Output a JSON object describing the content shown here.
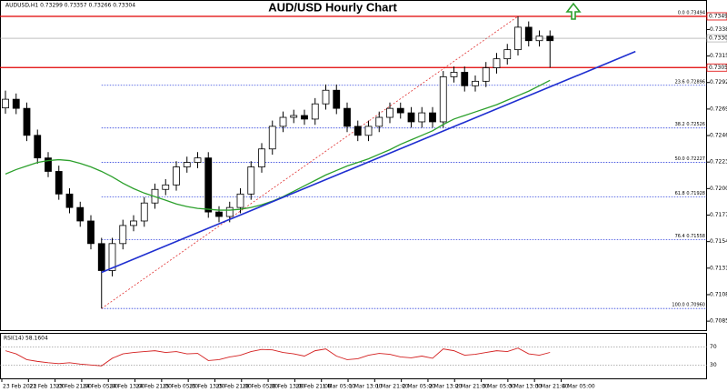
{
  "chart_data": [
    {
      "type": "candlestick",
      "title": "AUD/USD Hourly Chart",
      "header": "AUDUSD,H1  0.73299 0.73357 0.73266 0.73304",
      "up_color": "#ffffff",
      "down_color": "#000000",
      "open": [
        0.727,
        0.72775,
        0.72696,
        0.72462,
        0.72266,
        0.72149,
        0.71953,
        0.71836,
        0.71719,
        0.71523,
        0.71289,
        0.71523,
        0.7168,
        0.71719,
        0.71875,
        0.71993,
        0.72032,
        0.72188,
        0.72227,
        0.72266,
        0.71797,
        0.71758,
        0.71836,
        0.71953,
        0.72188,
        0.72344,
        0.7254,
        0.72618,
        0.72634,
        0.72603,
        0.72735,
        0.72853,
        0.72696,
        0.7254,
        0.72462,
        0.7254,
        0.72618,
        0.72696,
        0.72657,
        0.72579,
        0.72657,
        0.72579,
        0.7297,
        0.73009,
        0.72892,
        0.72931,
        0.73048,
        0.73126,
        0.73205,
        0.734,
        0.73283,
        0.73322
      ],
      "high": [
        0.7285,
        0.72825,
        0.72746,
        0.72512,
        0.72316,
        0.72199,
        0.72003,
        0.71886,
        0.71769,
        0.71573,
        0.71573,
        0.7173,
        0.71769,
        0.71925,
        0.72043,
        0.72082,
        0.72238,
        0.72277,
        0.72316,
        0.72316,
        0.71847,
        0.71886,
        0.72003,
        0.72238,
        0.72394,
        0.7259,
        0.72668,
        0.72684,
        0.72684,
        0.72785,
        0.72903,
        0.72903,
        0.72746,
        0.7259,
        0.7259,
        0.72668,
        0.72746,
        0.72746,
        0.72707,
        0.72707,
        0.72707,
        0.7302,
        0.73059,
        0.73059,
        0.72981,
        0.73098,
        0.73176,
        0.73255,
        0.73494,
        0.7345,
        0.73372,
        0.73372
      ],
      "low": [
        0.7265,
        0.72646,
        0.72412,
        0.72216,
        0.72099,
        0.71903,
        0.71786,
        0.71669,
        0.71473,
        0.7096,
        0.71239,
        0.71473,
        0.7163,
        0.71669,
        0.71825,
        0.71943,
        0.71982,
        0.72138,
        0.72177,
        0.71747,
        0.71708,
        0.71708,
        0.71786,
        0.71903,
        0.72138,
        0.72294,
        0.7249,
        0.72568,
        0.72553,
        0.72553,
        0.72685,
        0.72646,
        0.7249,
        0.72412,
        0.72412,
        0.7249,
        0.72568,
        0.72607,
        0.72529,
        0.72529,
        0.72529,
        0.72529,
        0.7292,
        0.72842,
        0.72842,
        0.72881,
        0.72998,
        0.73076,
        0.73155,
        0.73233,
        0.73233,
        0.7305
      ],
      "close": [
        0.72775,
        0.72696,
        0.72462,
        0.72266,
        0.72149,
        0.71953,
        0.71836,
        0.71719,
        0.71523,
        0.71289,
        0.71523,
        0.7168,
        0.71719,
        0.71875,
        0.71993,
        0.72032,
        0.72188,
        0.72227,
        0.72266,
        0.71797,
        0.71758,
        0.71836,
        0.71953,
        0.72188,
        0.72344,
        0.7254,
        0.72618,
        0.72634,
        0.72603,
        0.72735,
        0.72853,
        0.72696,
        0.7254,
        0.72462,
        0.7254,
        0.72618,
        0.72696,
        0.72657,
        0.72579,
        0.72657,
        0.72579,
        0.7297,
        0.73009,
        0.72892,
        0.72931,
        0.73048,
        0.73126,
        0.73205,
        0.734,
        0.73283,
        0.73322,
        0.73283
      ],
      "moving_average": {
        "color": "#2ca02c",
        "values": [
          0.72126,
          0.72165,
          0.72196,
          0.72227,
          0.72243,
          0.72251,
          0.72243,
          0.72219,
          0.72188,
          0.72149,
          0.72102,
          0.72047,
          0.72,
          0.71961,
          0.7193,
          0.71899,
          0.71867,
          0.71844,
          0.71828,
          0.71821,
          0.71813,
          0.71813,
          0.71821,
          0.71836,
          0.7186,
          0.71891,
          0.7193,
          0.71977,
          0.72024,
          0.72071,
          0.72118,
          0.72157,
          0.72196,
          0.72227,
          0.72258,
          0.72298,
          0.72337,
          0.72384,
          0.72423,
          0.72462,
          0.72501,
          0.72556,
          0.72603,
          0.72634,
          0.72665,
          0.72696,
          0.72728,
          0.72767,
          0.72806,
          0.72845,
          0.72892,
          0.72939
        ]
      },
      "trendline": {
        "color": "#1f2fd0",
        "x": [
          9,
          59
        ],
        "values": [
          0.71273,
          0.73189
        ]
      },
      "fibonacci": {
        "color": "#3344dd",
        "from_index": 9,
        "to_index": 48,
        "low": 0.7096,
        "high": 0.73494,
        "levels": [
          {
            "value": 0.73494,
            "label": "0.0 0.73494"
          },
          {
            "value": 0.72896,
            "label": "23.6 0.72896"
          },
          {
            "value": 0.72526,
            "label": "38.2 0.72526"
          },
          {
            "value": 0.72227,
            "label": "50.0 0.72227"
          },
          {
            "value": 0.71928,
            "label": "61.8 0.71928"
          },
          {
            "value": 0.71558,
            "label": "76.4 0.71558"
          },
          {
            "value": 0.7096,
            "label": "100.0 0.70960"
          }
        ]
      },
      "hlines": [
        {
          "value": 0.73494,
          "label": "0.73494"
        },
        {
          "value": 0.7305,
          "label": "0.73050"
        }
      ],
      "current_price": {
        "value": 0.73304,
        "label": "0.73304"
      },
      "ylim": [
        0.7078,
        0.73557
      ],
      "yticks": [
        {
          "value": 0.7085,
          "label": "0.70850"
        },
        {
          "value": 0.7108,
          "label": "0.71080"
        },
        {
          "value": 0.7131,
          "label": "0.71310"
        },
        {
          "value": 0.7154,
          "label": "0.71540"
        },
        {
          "value": 0.7177,
          "label": "0.71770"
        },
        {
          "value": 0.72,
          "label": "0.72000"
        },
        {
          "value": 0.7223,
          "label": "0.72230"
        },
        {
          "value": 0.7246,
          "label": "0.72460"
        },
        {
          "value": 0.7269,
          "label": "0.72690"
        },
        {
          "value": 0.7292,
          "label": "0.72920"
        },
        {
          "value": 0.7315,
          "label": "0.73150"
        },
        {
          "value": 0.7338,
          "label": "0.73380"
        }
      ],
      "x_labels": [
        "23 Feb 2022",
        "23 Feb 13:00",
        "23 Feb 21:00",
        "24 Feb 05:00",
        "24 Feb 13:00",
        "24 Feb 21:00",
        "25 Feb 05:00",
        "25 Feb 13:00",
        "25 Feb 21:00",
        "28 Feb 05:00",
        "28 Feb 13:00",
        "28 Feb 21:00",
        "1 Mar 05:00",
        "1 Mar 13:00",
        "1 Mar 21:00",
        "2 Mar 05:00",
        "2 Mar 13:00",
        "2 Mar 21:00",
        "3 Mar 05:00",
        "3 Mar 13:00",
        "3 Mar 21:00",
        "4 Mar 05:00"
      ]
    },
    {
      "type": "line",
      "title": "RSI(14) 58.1604",
      "color": "#d42020",
      "values": [
        62,
        55,
        42,
        38,
        35,
        33,
        35,
        32,
        30,
        28,
        45,
        55,
        58,
        60,
        62,
        58,
        60,
        55,
        56,
        40,
        42,
        48,
        52,
        60,
        65,
        64,
        58,
        55,
        50,
        62,
        66,
        50,
        42,
        44,
        52,
        56,
        54,
        48,
        46,
        50,
        45,
        66,
        62,
        52,
        54,
        58,
        62,
        60,
        68,
        55,
        52,
        58.16
      ],
      "ylim": [
        0,
        100
      ],
      "yticks": [
        30,
        70
      ]
    }
  ]
}
